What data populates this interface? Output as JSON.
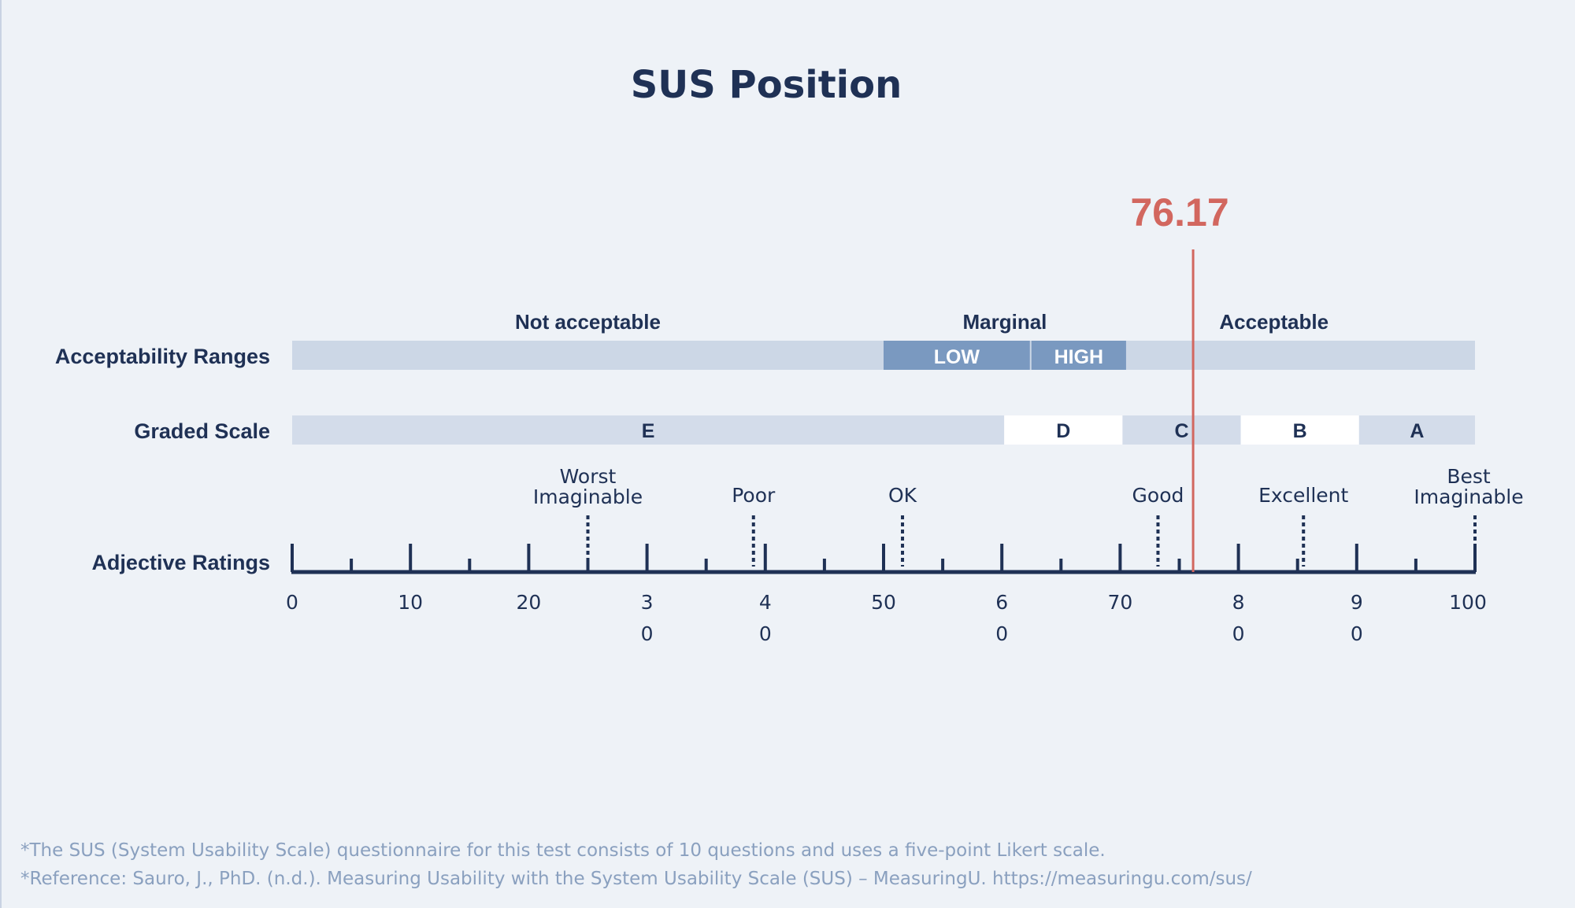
{
  "chart_data": {
    "type": "scale",
    "title": "SUS Position",
    "score": 76.17,
    "score_label": "76.17",
    "xlim": [
      0,
      100
    ],
    "row_labels": {
      "acceptability": "Acceptability Ranges",
      "graded": "Graded Scale",
      "adjective": "Adjective Ratings"
    },
    "acceptability_ranges": [
      {
        "label": "Not acceptable",
        "from": 0,
        "to": 50
      },
      {
        "label": "Marginal",
        "from": 50,
        "to": 70
      },
      {
        "label": "Acceptable",
        "from": 70,
        "to": 100
      }
    ],
    "marginal_bands": [
      {
        "label": "LOW",
        "from": 50,
        "to": 62.5
      },
      {
        "label": "HIGH",
        "from": 62.5,
        "to": 70.5
      }
    ],
    "grades": [
      {
        "label": "E",
        "from": 0,
        "to": 60.2,
        "fill": "#d3dcea"
      },
      {
        "label": "D",
        "from": 60.2,
        "to": 70.2,
        "fill": "#ffffff"
      },
      {
        "label": "C",
        "from": 70.2,
        "to": 80.2,
        "fill": "#d3dcea"
      },
      {
        "label": "B",
        "from": 80.2,
        "to": 90.2,
        "fill": "#ffffff"
      },
      {
        "label": "A",
        "from": 90.2,
        "to": 100,
        "fill": "#d3dcea"
      }
    ],
    "adjectives": [
      {
        "lines": [
          "Worst",
          "Imaginable"
        ],
        "value": 25
      },
      {
        "lines": [
          "Poor"
        ],
        "value": 39
      },
      {
        "lines": [
          "OK"
        ],
        "value": 51.6
      },
      {
        "lines": [
          "Good"
        ],
        "value": 73.2
      },
      {
        "lines": [
          "Excellent"
        ],
        "value": 85.5
      },
      {
        "lines": [
          "Best",
          "Imaginable"
        ],
        "value": 100
      }
    ],
    "ticks": [
      {
        "line1": "0",
        "line2": "",
        "value": 0
      },
      {
        "line1": "10",
        "line2": "",
        "value": 10
      },
      {
        "line1": "20",
        "line2": "",
        "value": 20
      },
      {
        "line1": "3",
        "line2": "0",
        "value": 30
      },
      {
        "line1": "4",
        "line2": "0",
        "value": 40
      },
      {
        "line1": "50",
        "line2": "",
        "value": 50
      },
      {
        "line1": "6",
        "line2": "0",
        "value": 60
      },
      {
        "line1": "70",
        "line2": "",
        "value": 70
      },
      {
        "line1": "8",
        "line2": "0",
        "value": 80
      },
      {
        "line1": "9",
        "line2": "0",
        "value": 90
      },
      {
        "line1": "100",
        "line2": "",
        "value": 100
      }
    ],
    "minor_ticks": [
      5,
      15,
      25,
      35,
      45,
      55,
      65,
      75,
      85,
      95
    ],
    "colors": {
      "navy": "#1f3155",
      "score": "#d2675f",
      "band_light": "#ccd7e6",
      "band_mid": "#7a99c0",
      "footnote": "#8aa0bf"
    }
  },
  "footnotes": [
    "*The SUS (System Usability Scale) questionnaire for this test consists of 10 questions and uses a five-point Likert scale.",
    "*Reference: Sauro, J., PhD. (n.d.). Measuring Usability with the System Usability Scale (SUS) – MeasuringU. https://measuringu.com/sus/"
  ]
}
